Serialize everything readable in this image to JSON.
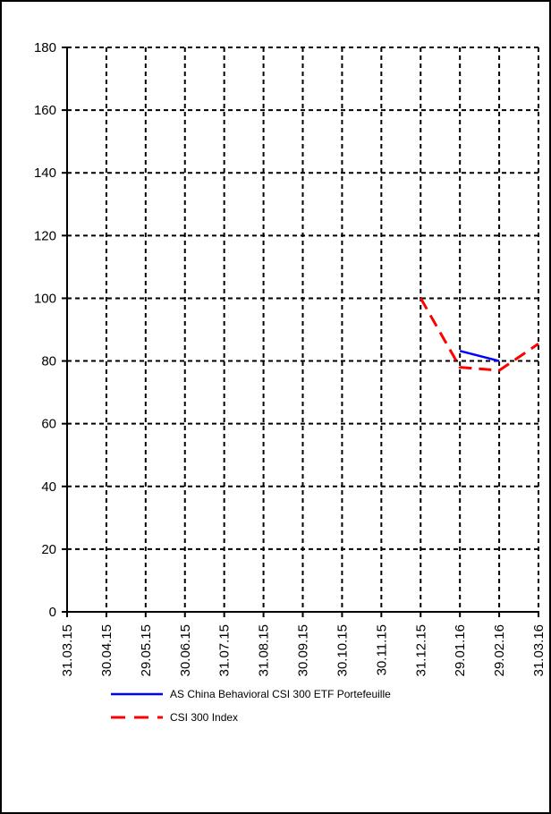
{
  "chart_data": {
    "type": "line",
    "title": "",
    "xlabel": "",
    "ylabel": "",
    "categories": [
      "31.03.15",
      "30.04.15",
      "29.05.15",
      "30.06.15",
      "31.07.15",
      "31.08.15",
      "30.09.15",
      "30.10.15",
      "30.11.15",
      "31.12.15",
      "29.01.16",
      "29.02.16",
      "31.03.16"
    ],
    "ylim": [
      0,
      180
    ],
    "yticks": [
      0,
      20,
      40,
      60,
      80,
      100,
      120,
      140,
      160,
      180
    ],
    "grid": true,
    "legend_position": "bottom",
    "series": [
      {
        "name": "AS China Behavioral CSI 300 ETF Portefeuille",
        "color": "#0000ff",
        "style": "solid",
        "points": [
          [
            10,
            83.2
          ],
          [
            11,
            80
          ]
        ]
      },
      {
        "name": "CSI 300 Index",
        "color": "#ff0000",
        "style": "dashed",
        "points": [
          [
            9,
            100
          ],
          [
            10,
            78
          ],
          [
            11,
            77
          ],
          [
            12,
            85.5
          ]
        ]
      }
    ]
  }
}
